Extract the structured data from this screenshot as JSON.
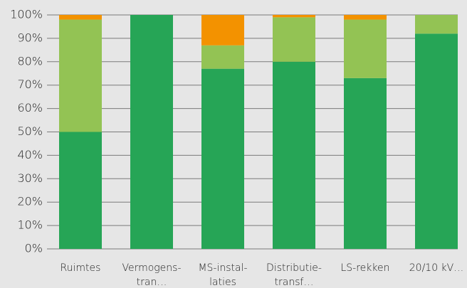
{
  "chart_data": {
    "type": "stacked_bar",
    "categories": [
      "Ruimtes",
      "Vermogens-\ntran…",
      "MS-instal-\nlaties",
      "Distributie-\ntransf…",
      "LS-rekken",
      "20/10 kV…"
    ],
    "series": [
      {
        "color": "#26a556",
        "values": [
          50,
          100,
          77,
          80,
          73,
          92
        ]
      },
      {
        "color": "#93c354",
        "values": [
          48,
          0,
          10,
          19,
          25,
          8
        ]
      },
      {
        "color": "#f39200",
        "values": [
          2,
          0,
          13,
          1,
          2,
          0
        ]
      }
    ],
    "ylim": [
      0,
      100
    ],
    "yticks": [
      {
        "value": 0,
        "label": "0%"
      },
      {
        "value": 10,
        "label": "10%"
      },
      {
        "value": 20,
        "label": "20%"
      },
      {
        "value": 30,
        "label": "30%"
      },
      {
        "value": 40,
        "label": "40%"
      },
      {
        "value": 50,
        "label": "50%"
      },
      {
        "value": 60,
        "label": "60%"
      },
      {
        "value": 70,
        "label": "70%"
      },
      {
        "value": 80,
        "label": "80%"
      },
      {
        "value": 90,
        "label": "90%"
      },
      {
        "value": 100,
        "label": "100%"
      }
    ],
    "grid": true
  }
}
